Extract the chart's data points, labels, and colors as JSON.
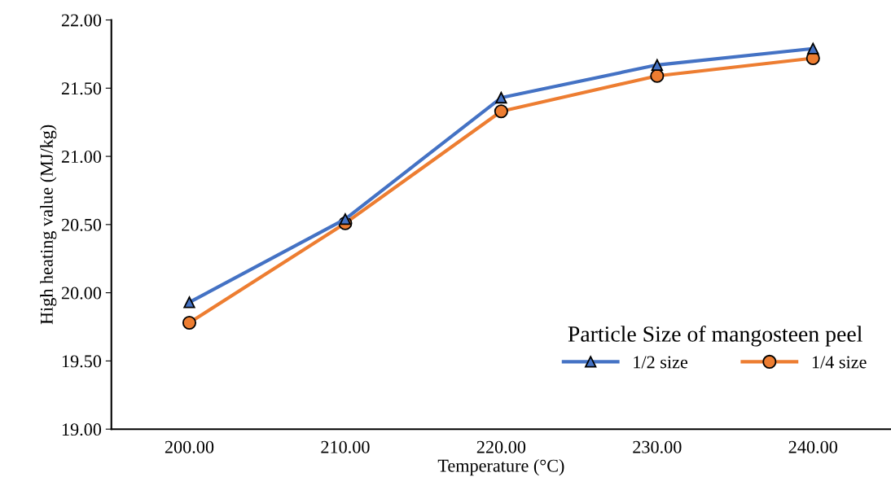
{
  "chart_data": {
    "type": "line",
    "xlabel": "Temperature (°C)",
    "ylabel": "High heating value (MJ/kg)",
    "categories": [
      "200.00",
      "210.00",
      "220.00",
      "230.00",
      "240.00"
    ],
    "series": [
      {
        "name": "1/2 size",
        "color": "#4472c4",
        "marker": "triangle",
        "values": [
          19.93,
          20.54,
          21.43,
          21.67,
          21.79
        ]
      },
      {
        "name": "1/4 size",
        "color": "#ed7d31",
        "marker": "circle",
        "values": [
          19.78,
          20.51,
          21.33,
          21.59,
          21.72
        ]
      }
    ],
    "ylim": [
      19.0,
      22.0
    ],
    "yticks": [
      {
        "value": 19.0,
        "label": "19.00"
      },
      {
        "value": 19.5,
        "label": "19.50"
      },
      {
        "value": 20.0,
        "label": "20.00"
      },
      {
        "value": 20.5,
        "label": "20.50"
      },
      {
        "value": 21.0,
        "label": "21.00"
      },
      {
        "value": 21.5,
        "label": "21.50"
      },
      {
        "value": 22.0,
        "label": "22.00"
      }
    ],
    "legend": "bottom right",
    "legend_title": "Particle Size of mangosteen peel",
    "grid": false,
    "line_style": "solid"
  }
}
